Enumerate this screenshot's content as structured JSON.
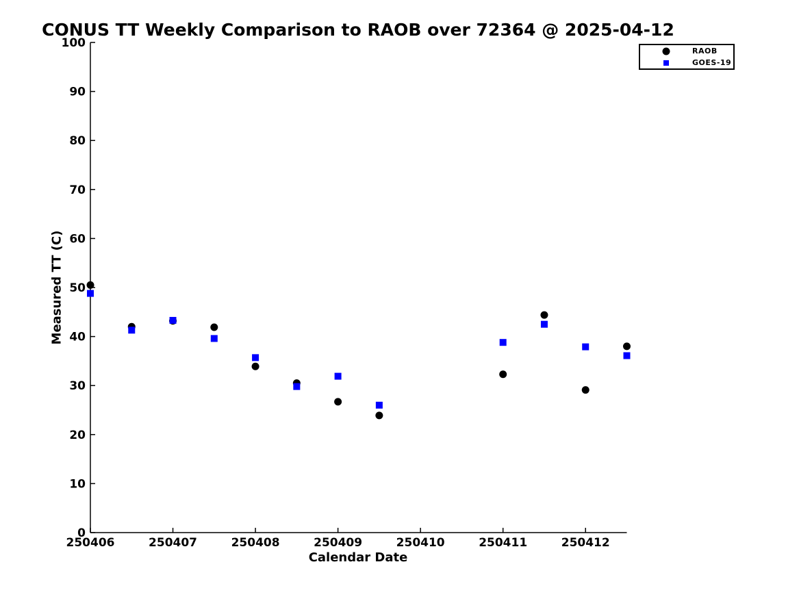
{
  "chart_data": {
    "type": "scatter",
    "title": "CONUS TT Weekly Comparison to RAOB over 72364 @ 2025-04-12",
    "xlabel": "Calendar Date",
    "ylabel": "Measured TT (C)",
    "background_color": "#ffffff",
    "axis_color": "#000000",
    "grid": false,
    "x_axis": {
      "min": 250406,
      "max": 250412.5,
      "ticks": [
        {
          "value": 250406,
          "label": "250406"
        },
        {
          "value": 250407,
          "label": "250407"
        },
        {
          "value": 250408,
          "label": "250408"
        },
        {
          "value": 250409,
          "label": "250409"
        },
        {
          "value": 250410,
          "label": "250410"
        },
        {
          "value": 250411,
          "label": "250411"
        },
        {
          "value": 250412,
          "label": "250412"
        }
      ]
    },
    "y_axis": {
      "min": 0,
      "max": 100,
      "ticks": [
        {
          "value": 0,
          "label": "0"
        },
        {
          "value": 10,
          "label": "10"
        },
        {
          "value": 20,
          "label": "20"
        },
        {
          "value": 30,
          "label": "30"
        },
        {
          "value": 40,
          "label": "40"
        },
        {
          "value": 50,
          "label": "50"
        },
        {
          "value": 60,
          "label": "60"
        },
        {
          "value": 70,
          "label": "70"
        },
        {
          "value": 80,
          "label": "80"
        },
        {
          "value": 90,
          "label": "90"
        },
        {
          "value": 100,
          "label": "100"
        }
      ]
    },
    "legend": {
      "position": "top-right"
    },
    "series": [
      {
        "name": "RAOB",
        "marker": "circle",
        "color": "#000000",
        "points": [
          [
            250406.0,
            50.5
          ],
          [
            250406.5,
            42.0
          ],
          [
            250407.0,
            43.2
          ],
          [
            250407.5,
            41.9
          ],
          [
            250408.0,
            33.9
          ],
          [
            250408.5,
            30.5
          ],
          [
            250409.0,
            26.7
          ],
          [
            250409.5,
            23.9
          ],
          [
            250411.0,
            32.3
          ],
          [
            250411.5,
            44.4
          ],
          [
            250412.0,
            29.1
          ],
          [
            250412.5,
            38.0
          ]
        ]
      },
      {
        "name": "GOES-19",
        "marker": "square",
        "color": "#0000ff",
        "points": [
          [
            250406.0,
            48.8
          ],
          [
            250406.5,
            41.3
          ],
          [
            250407.0,
            43.3
          ],
          [
            250407.5,
            39.6
          ],
          [
            250408.0,
            35.7
          ],
          [
            250408.5,
            29.8
          ],
          [
            250409.0,
            31.9
          ],
          [
            250409.5,
            26.0
          ],
          [
            250411.0,
            38.8
          ],
          [
            250411.5,
            42.5
          ],
          [
            250412.0,
            37.9
          ],
          [
            250412.5,
            36.1
          ]
        ]
      }
    ]
  }
}
